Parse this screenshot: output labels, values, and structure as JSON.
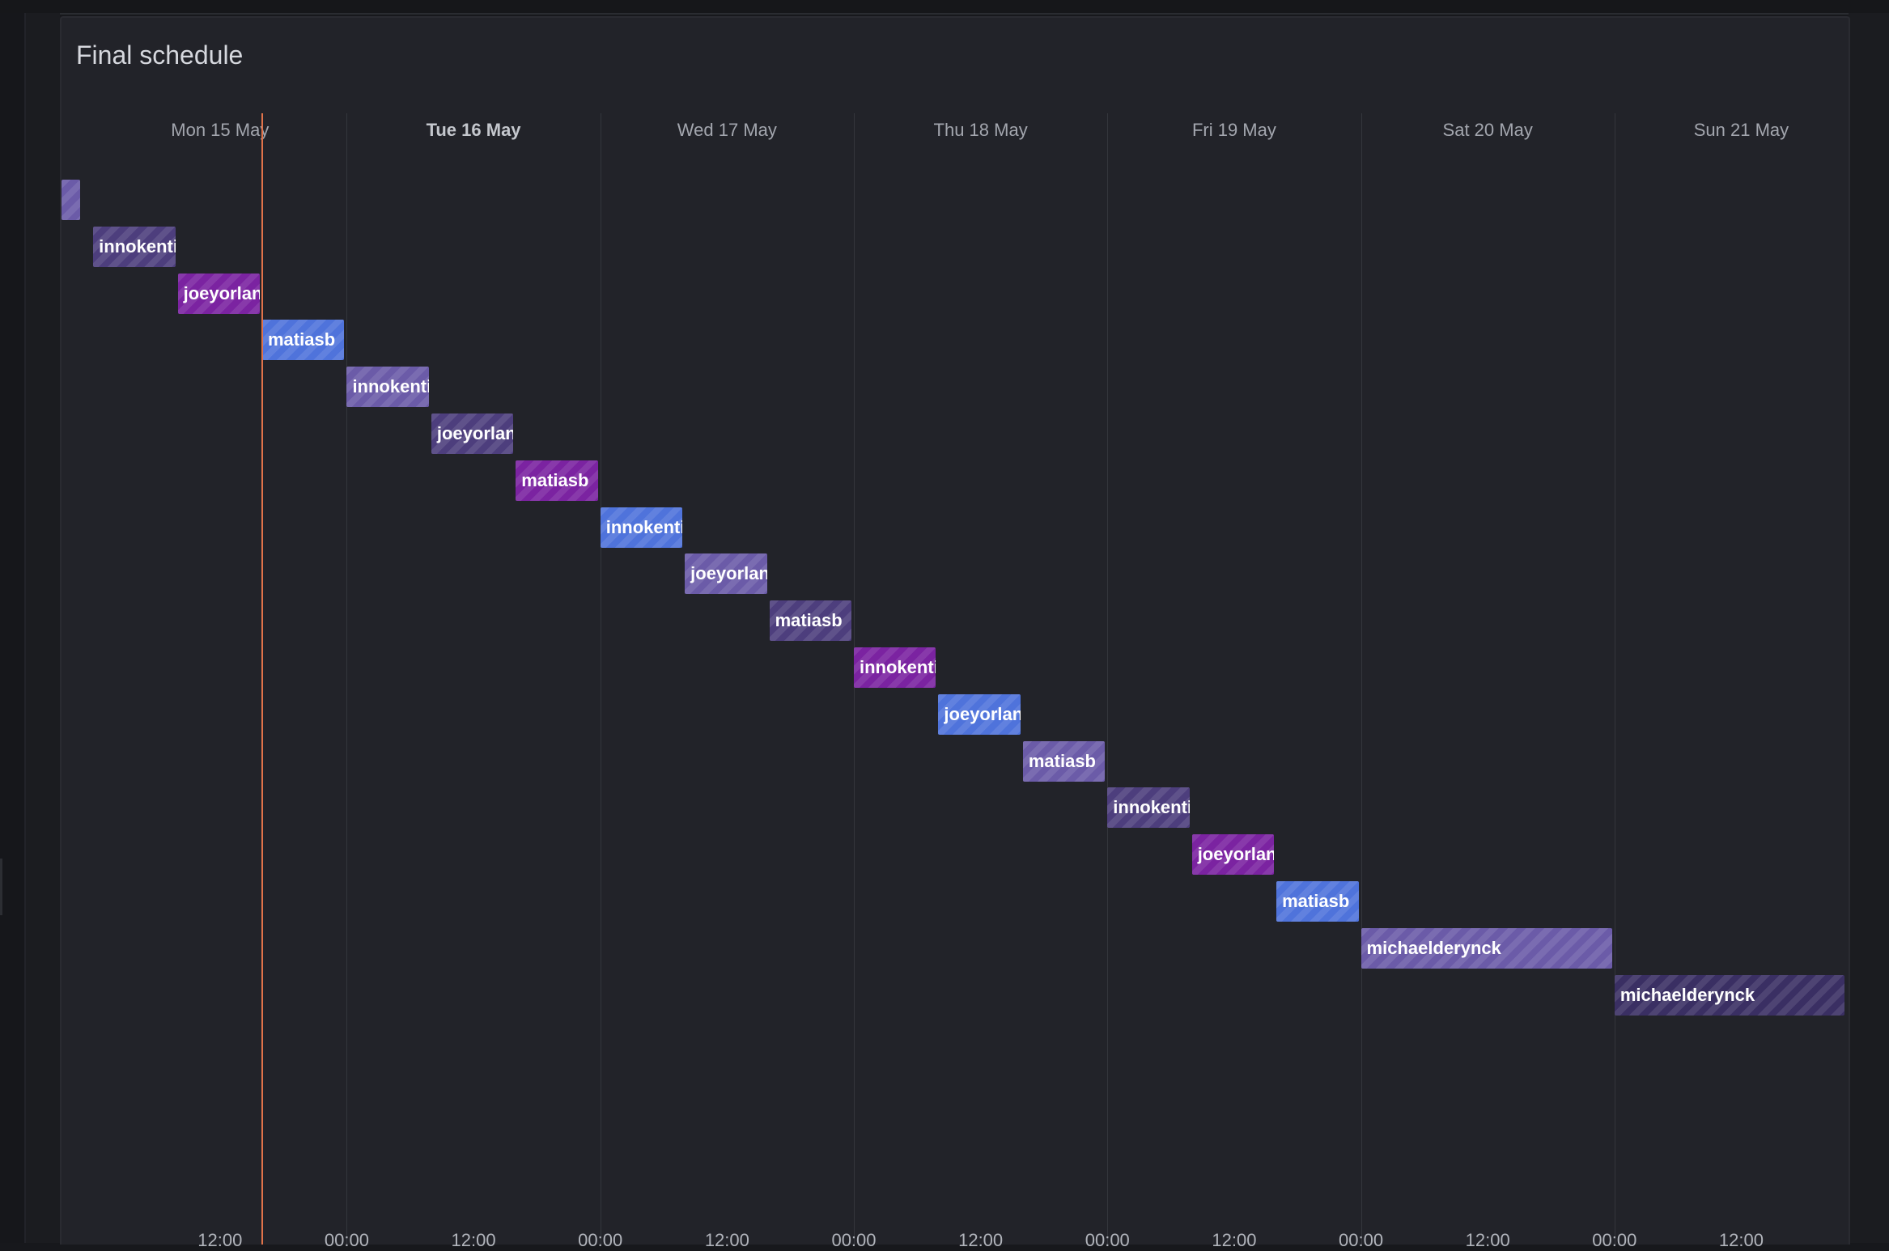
{
  "panel": {
    "title": "Final schedule"
  },
  "colors": {
    "now_line": "#e0734a",
    "slate": "#4d3e7d",
    "purple": "#7b23a1",
    "blue": "#4f73db",
    "lavender": "#6b5ba8",
    "dark_violet": "#3a2f63"
  },
  "timeline": {
    "start": "2023-05-14T21:00",
    "end": "2023-05-21T22:00",
    "now": "2023-05-15T16:00",
    "day_labels": [
      {
        "text": "Mon 15 May",
        "at": "2023-05-15T12:00",
        "bold": false
      },
      {
        "text": "Tue 16 May",
        "at": "2023-05-16T12:00",
        "bold": true
      },
      {
        "text": "Wed 17 May",
        "at": "2023-05-17T12:00",
        "bold": false
      },
      {
        "text": "Thu 18 May",
        "at": "2023-05-18T12:00",
        "bold": false
      },
      {
        "text": "Fri 19 May",
        "at": "2023-05-19T12:00",
        "bold": false
      },
      {
        "text": "Sat 20 May",
        "at": "2023-05-20T12:00",
        "bold": false
      },
      {
        "text": "Sun 21 May",
        "at": "2023-05-21T12:00",
        "bold": false
      }
    ],
    "hour_labels": [
      {
        "text": "12:00",
        "at": "2023-05-15T12:00"
      },
      {
        "text": "00:00",
        "at": "2023-05-16T00:00"
      },
      {
        "text": "12:00",
        "at": "2023-05-16T12:00"
      },
      {
        "text": "00:00",
        "at": "2023-05-17T00:00"
      },
      {
        "text": "12:00",
        "at": "2023-05-17T12:00"
      },
      {
        "text": "00:00",
        "at": "2023-05-18T00:00"
      },
      {
        "text": "12:00",
        "at": "2023-05-18T12:00"
      },
      {
        "text": "00:00",
        "at": "2023-05-19T00:00"
      },
      {
        "text": "12:00",
        "at": "2023-05-19T12:00"
      },
      {
        "text": "00:00",
        "at": "2023-05-20T00:00"
      },
      {
        "text": "12:00",
        "at": "2023-05-20T12:00"
      },
      {
        "text": "00:00",
        "at": "2023-05-21T00:00"
      },
      {
        "text": "12:00",
        "at": "2023-05-21T12:00"
      }
    ],
    "midnights": [
      "2023-05-16T00:00",
      "2023-05-17T00:00",
      "2023-05-18T00:00",
      "2023-05-19T00:00",
      "2023-05-20T00:00",
      "2023-05-21T00:00"
    ]
  },
  "shifts": [
    {
      "user": "",
      "start": "2023-05-14T21:00",
      "end": "2023-05-14T23:00",
      "color": "lavender"
    },
    {
      "user": "innokentii",
      "start": "2023-05-15T00:00",
      "end": "2023-05-15T08:00",
      "color": "slate"
    },
    {
      "user": "joeyorlando",
      "start": "2023-05-15T08:00",
      "end": "2023-05-15T16:00",
      "color": "purple"
    },
    {
      "user": "matiasb",
      "start": "2023-05-15T16:00",
      "end": "2023-05-16T00:00",
      "color": "blue"
    },
    {
      "user": "innokentii",
      "start": "2023-05-16T00:00",
      "end": "2023-05-16T08:00",
      "color": "lavender"
    },
    {
      "user": "joeyorlando",
      "start": "2023-05-16T08:00",
      "end": "2023-05-16T16:00",
      "color": "slate"
    },
    {
      "user": "matiasb",
      "start": "2023-05-16T16:00",
      "end": "2023-05-17T00:00",
      "color": "purple"
    },
    {
      "user": "innokentii",
      "start": "2023-05-17T00:00",
      "end": "2023-05-17T08:00",
      "color": "blue"
    },
    {
      "user": "joeyorlando",
      "start": "2023-05-17T08:00",
      "end": "2023-05-17T16:00",
      "color": "lavender"
    },
    {
      "user": "matiasb",
      "start": "2023-05-17T16:00",
      "end": "2023-05-18T00:00",
      "color": "slate"
    },
    {
      "user": "innokentii",
      "start": "2023-05-18T00:00",
      "end": "2023-05-18T08:00",
      "color": "purple"
    },
    {
      "user": "joeyorlando",
      "start": "2023-05-18T08:00",
      "end": "2023-05-18T16:00",
      "color": "blue"
    },
    {
      "user": "matiasb",
      "start": "2023-05-18T16:00",
      "end": "2023-05-19T00:00",
      "color": "lavender"
    },
    {
      "user": "innokentii",
      "start": "2023-05-19T00:00",
      "end": "2023-05-19T08:00",
      "color": "slate"
    },
    {
      "user": "joeyorlando",
      "start": "2023-05-19T08:00",
      "end": "2023-05-19T16:00",
      "color": "purple"
    },
    {
      "user": "matiasb",
      "start": "2023-05-19T16:00",
      "end": "2023-05-20T00:00",
      "color": "blue"
    },
    {
      "user": "michaelderynck",
      "start": "2023-05-20T00:00",
      "end": "2023-05-21T00:00",
      "color": "lavender"
    },
    {
      "user": "michaelderynck",
      "start": "2023-05-21T00:00",
      "end": "2023-05-21T22:00",
      "color": "dark_violet"
    }
  ]
}
